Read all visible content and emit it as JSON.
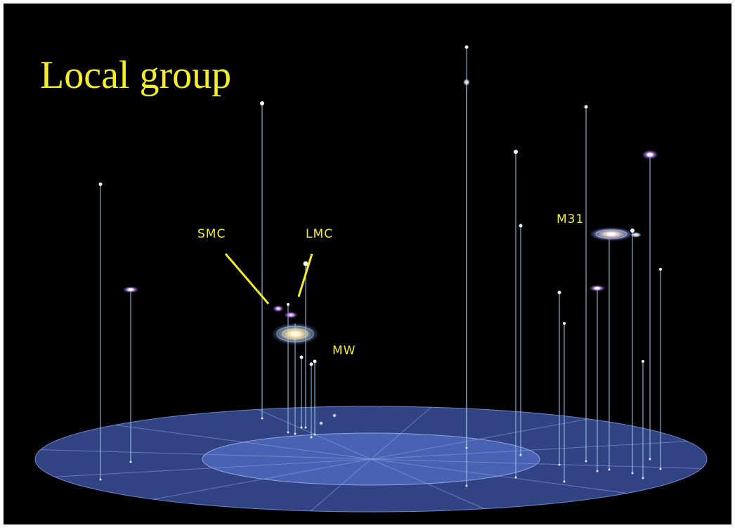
{
  "title": "Local group",
  "colors": {
    "background": "#000000",
    "label": "#f5ec2a",
    "disk_outer": "#3a4f9a",
    "disk_inner": "#4e66b8",
    "pillar": "#9fc6ee"
  },
  "labels": {
    "smc": "SMC",
    "lmc": "LMC",
    "mw": "MW",
    "m31": "M31"
  },
  "icons": [
    "milky-way-spiral-icon",
    "andromeda-spiral-icon",
    "dwarf-galaxy-icon"
  ]
}
